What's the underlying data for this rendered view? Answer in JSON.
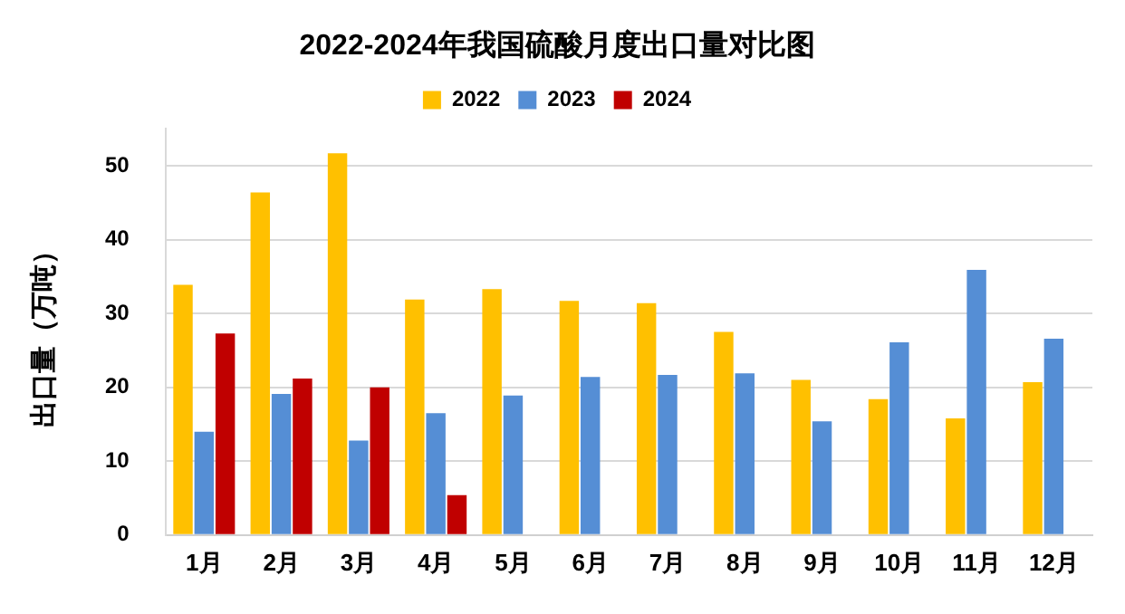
{
  "chart_data": {
    "type": "bar",
    "title": "2022-2024年我国硫酸月度出口量对比图",
    "ylabel": "出口量（万吨）",
    "categories": [
      "1月",
      "2月",
      "3月",
      "4月",
      "5月",
      "6月",
      "7月",
      "8月",
      "9月",
      "10月",
      "11月",
      "12月"
    ],
    "series": [
      {
        "name": "2022",
        "color": "#ffc000",
        "values": [
          33.9,
          46.4,
          51.7,
          31.9,
          33.3,
          31.7,
          31.4,
          27.5,
          21.0,
          18.4,
          15.8,
          20.7
        ]
      },
      {
        "name": "2023",
        "color": "#558ed5",
        "values": [
          14.0,
          19.1,
          12.8,
          16.5,
          18.9,
          21.4,
          21.7,
          21.9,
          15.4,
          26.1,
          35.9,
          26.6
        ]
      },
      {
        "name": "2024",
        "color": "#c00000",
        "values": [
          27.3,
          21.2,
          20.0,
          5.4,
          null,
          null,
          null,
          null,
          null,
          null,
          null,
          null
        ]
      }
    ],
    "ylim": [
      0,
      55
    ],
    "yticks": [
      0,
      10,
      20,
      30,
      40,
      50
    ],
    "grid": "y",
    "legend": "top"
  }
}
